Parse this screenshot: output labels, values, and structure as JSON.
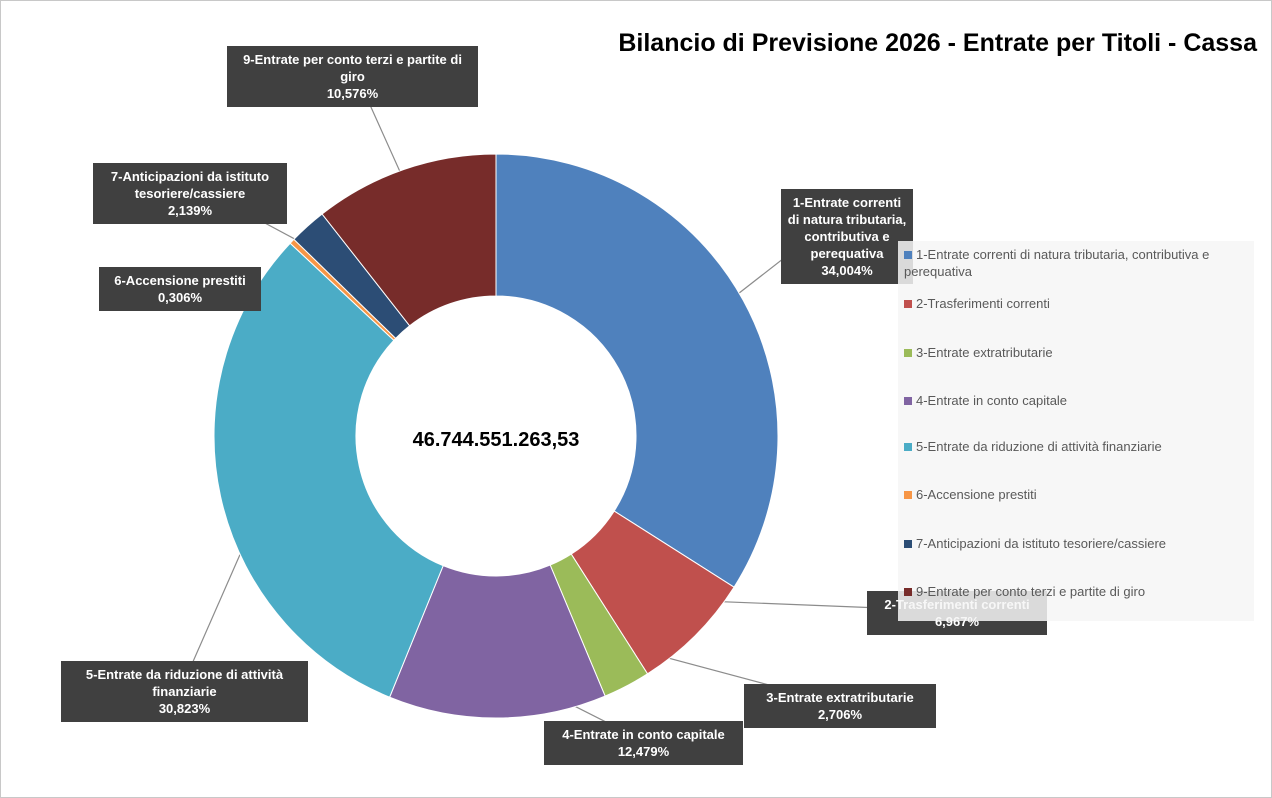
{
  "chart_data": {
    "type": "pie",
    "donut": true,
    "title": "Bilancio di Previsione 2026 - Entrate per Titoli - Cassa",
    "center_label": "46.744.551.263,53",
    "categories": [
      "1-Entrate correnti di natura tributaria, contributiva e perequativa",
      "2-Trasferimenti correnti",
      "3-Entrate extratributarie",
      "4-Entrate in conto capitale",
      "5-Entrate da riduzione di attività finanziarie",
      "6-Accensione prestiti",
      "7-Anticipazioni da istituto tesoriere/cassiere",
      "9-Entrate per conto terzi e partite di giro"
    ],
    "values": [
      34.004,
      6.967,
      2.706,
      12.479,
      30.823,
      0.306,
      2.139,
      10.576
    ],
    "value_labels": [
      "34,004%",
      "6,967%",
      "2,706%",
      "12,479%",
      "30,823%",
      "0,306%",
      "2,139%",
      "10,576%"
    ],
    "colors": [
      "#4f81bd",
      "#c0504d",
      "#9bbb59",
      "#8064a2",
      "#4bacc6",
      "#f79646",
      "#2c4d75",
      "#772c2a"
    ],
    "legend": "right"
  }
}
